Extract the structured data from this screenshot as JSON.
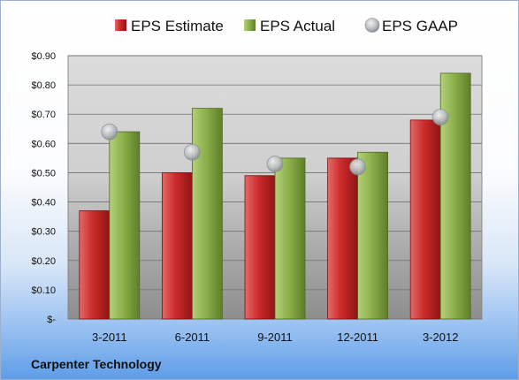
{
  "company": "Carpenter Technology",
  "chart_data": {
    "type": "bar",
    "categories": [
      "3-2011",
      "6-2011",
      "9-2011",
      "12-2011",
      "3-2012"
    ],
    "series": [
      {
        "name": "EPS Estimate",
        "kind": "bar",
        "color": "#cc2a2a",
        "values": [
          0.37,
          0.5,
          0.49,
          0.55,
          0.68
        ]
      },
      {
        "name": "EPS Actual",
        "kind": "bar",
        "color": "#8cb04a",
        "values": [
          0.64,
          0.72,
          0.55,
          0.57,
          0.84
        ]
      },
      {
        "name": "EPS GAAP",
        "kind": "marker",
        "color": "#b8bcc0",
        "values": [
          0.64,
          0.57,
          0.53,
          0.52,
          0.69
        ]
      }
    ],
    "y_ticks": [
      "$-",
      "$0.10",
      "$0.20",
      "$0.30",
      "$0.40",
      "$0.50",
      "$0.60",
      "$0.70",
      "$0.80",
      "$0.90"
    ],
    "ylim": [
      0,
      0.9
    ],
    "grid": true,
    "legend_position": "top"
  }
}
